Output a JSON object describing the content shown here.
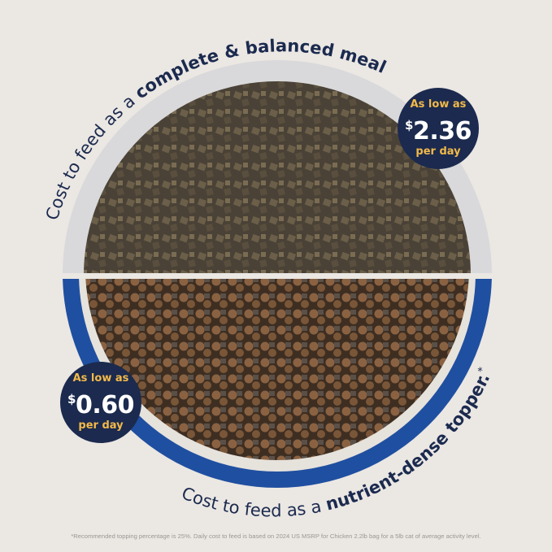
{
  "top_caption": {
    "regular": "Cost to feed as a ",
    "bold": "complete & balanced meal."
  },
  "bottom_caption": {
    "regular": "Cost to feed as a ",
    "bold": "nutrient-dense topper.",
    "mark": "*"
  },
  "badge_top": {
    "line1": "As low as",
    "currency": "$",
    "amount": "2.36",
    "line3": "per day"
  },
  "badge_bottom": {
    "line1": "As low as",
    "currency": "$",
    "amount": "0.60",
    "line3": "per day"
  },
  "footnote": "*Recommended topping percentage is 25%. Daily cost to feed is based on 2024 US MSRP for Chicken 2.2lb bag for a 5lb cat of average activity level.",
  "colors": {
    "background": "#ebe7e3",
    "navy": "#1b2a4e",
    "gold": "#f2b94a",
    "bowl_gray": "#d9d9db",
    "bowl_blue": "#1f4fa0"
  }
}
